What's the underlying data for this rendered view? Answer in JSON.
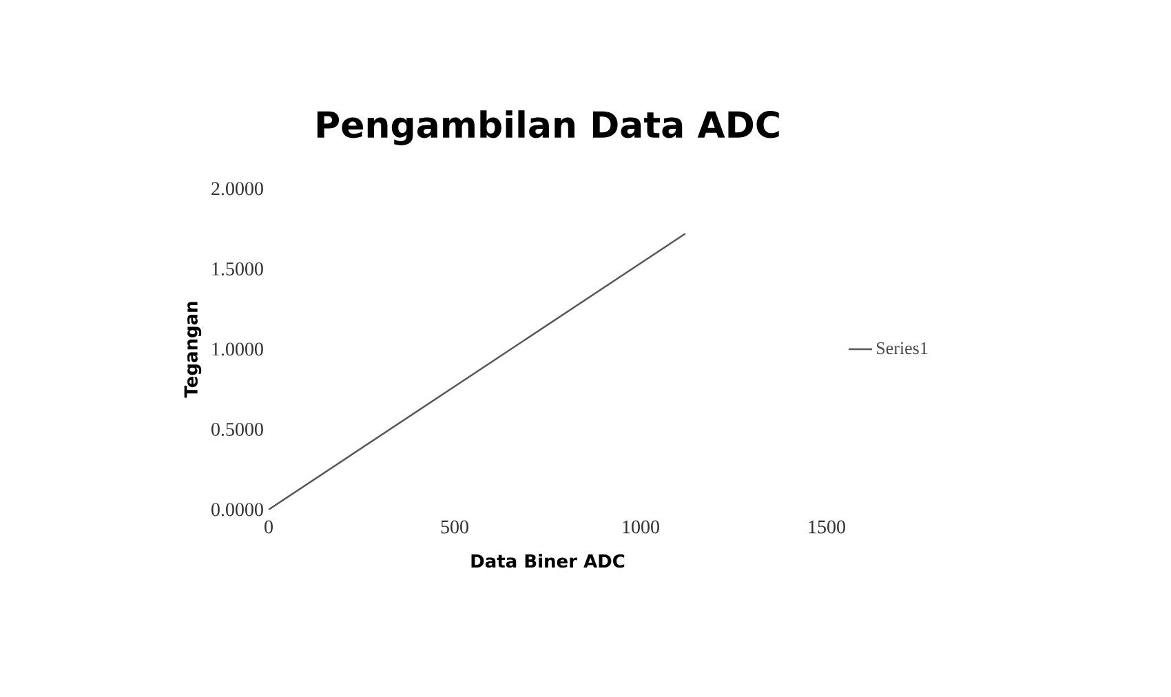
{
  "chart_data": {
    "type": "line",
    "title": "Pengambilan Data ADC",
    "xlabel": "Data Biner ADC",
    "ylabel": "Tegangan",
    "x": [
      0,
      1120
    ],
    "series": [
      {
        "name": "Series1",
        "color": "#555555",
        "values": [
          0,
          1.72
        ]
      }
    ],
    "xlim": [
      0,
      1500
    ],
    "xticks": [
      0,
      500,
      1000,
      1500
    ],
    "ylim": [
      0,
      2
    ],
    "yticks": [
      {
        "value": 0,
        "label": "0.0000"
      },
      {
        "value": 0.5,
        "label": "0.5000"
      },
      {
        "value": 1,
        "label": "1.0000"
      },
      {
        "value": 1.5,
        "label": "1.5000"
      },
      {
        "value": 2,
        "label": "2.0000"
      }
    ],
    "legend": "right",
    "grid": false
  }
}
